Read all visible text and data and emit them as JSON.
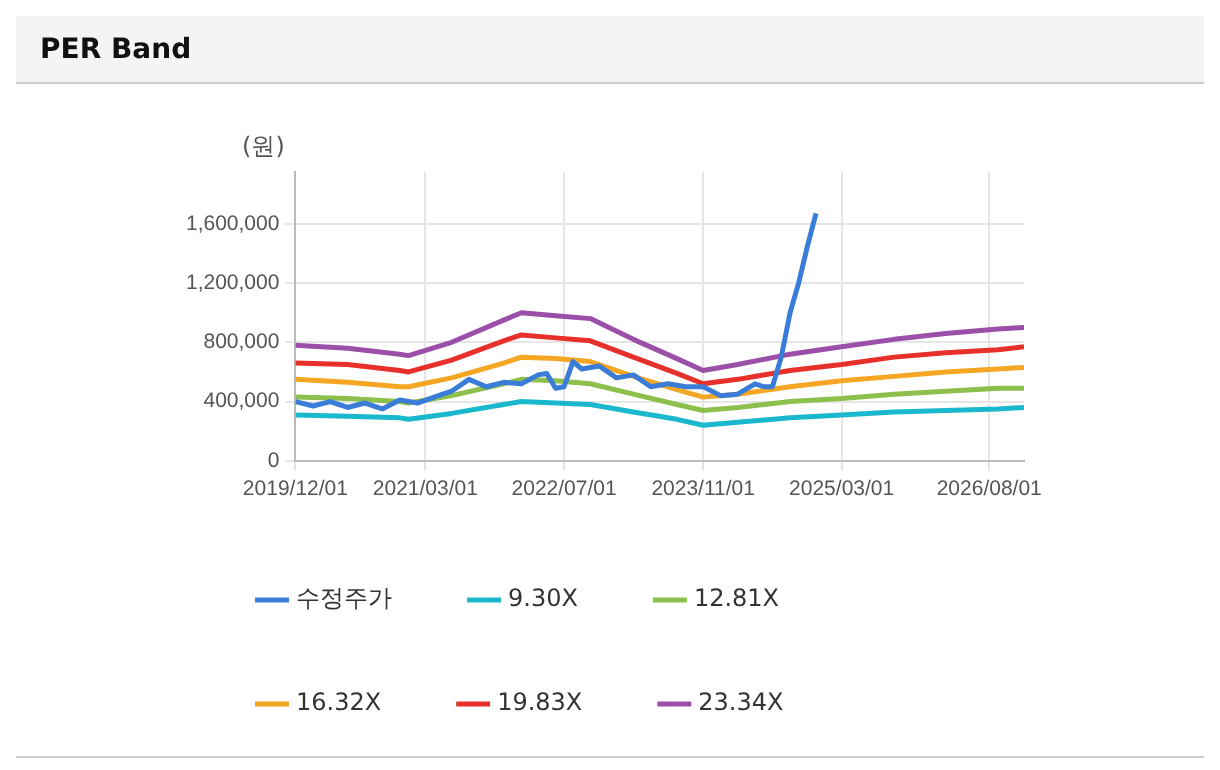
{
  "chart_data": {
    "type": "line",
    "title": "PER Band",
    "ylabel": "(원)",
    "xlim": [
      "2019-12",
      "2026-12"
    ],
    "xticks": [
      {
        "value": "2019-12",
        "label": "2019/12/01"
      },
      {
        "value": "2021-03",
        "label": "2021/03/01"
      },
      {
        "value": "2022-07",
        "label": "2022/07/01"
      },
      {
        "value": "2023-11",
        "label": "2023/11/01"
      },
      {
        "value": "2025-03",
        "label": "2025/03/01"
      },
      {
        "value": "2026-08",
        "label": "2026/08/01"
      }
    ],
    "ylim": [
      0,
      1950000
    ],
    "yticks": [
      {
        "value": 0,
        "label": "0"
      },
      {
        "value": 400000,
        "label": "400,000"
      },
      {
        "value": 800000,
        "label": "800,000"
      },
      {
        "value": 1200000,
        "label": "1,200,000"
      },
      {
        "value": 1600000,
        "label": "1,600,000"
      }
    ],
    "grid": true,
    "legend": "bottom",
    "marker": "none",
    "line_style": "solid",
    "series": [
      {
        "name": "수정주가",
        "color": "#3a7dd8",
        "x": [
          "2019-12",
          "2020-02",
          "2020-04",
          "2020-06",
          "2020-08",
          "2020-10",
          "2020-12",
          "2021-02",
          "2021-04",
          "2021-06",
          "2021-08",
          "2021-10",
          "2021-12",
          "2022-02",
          "2022-04",
          "2022-05",
          "2022-06",
          "2022-07",
          "2022-08",
          "2022-09",
          "2022-11",
          "2023-01",
          "2023-03",
          "2023-05",
          "2023-07",
          "2023-09",
          "2023-11",
          "2024-01",
          "2024-03",
          "2024-05",
          "2024-06",
          "2024-07",
          "2024-08",
          "2024-09",
          "2024-10",
          "2024-11",
          "2024-12"
        ],
        "values": [
          400000,
          370000,
          400000,
          360000,
          390000,
          350000,
          410000,
          390000,
          430000,
          470000,
          550000,
          500000,
          530000,
          520000,
          580000,
          590000,
          490000,
          500000,
          670000,
          620000,
          640000,
          560000,
          580000,
          500000,
          520000,
          500000,
          500000,
          440000,
          450000,
          520000,
          500000,
          500000,
          700000,
          1000000,
          1200000,
          1450000,
          1670000
        ]
      },
      {
        "name": "9.30X",
        "color": "#1ab8cc",
        "values": [
          310000,
          300000,
          290000,
          280000,
          320000,
          380000,
          400000,
          390000,
          380000,
          330000,
          280000,
          240000,
          260000,
          290000,
          310000,
          330000,
          340000,
          350000,
          360000
        ]
      },
      {
        "name": "12.81X",
        "color": "#8cbf4c",
        "values": [
          430000,
          420000,
          400000,
          390000,
          440000,
          520000,
          550000,
          540000,
          520000,
          450000,
          380000,
          340000,
          360000,
          400000,
          420000,
          450000,
          470000,
          490000,
          490000
        ]
      },
      {
        "name": "16.32X",
        "color": "#f5a623",
        "values": [
          550000,
          530000,
          500000,
          500000,
          560000,
          660000,
          700000,
          690000,
          670000,
          570000,
          480000,
          430000,
          450000,
          500000,
          540000,
          570000,
          600000,
          620000,
          630000
        ]
      },
      {
        "name": "19.83X",
        "color": "#e8302a",
        "values": [
          660000,
          650000,
          610000,
          600000,
          680000,
          810000,
          850000,
          830000,
          810000,
          700000,
          590000,
          520000,
          550000,
          610000,
          650000,
          700000,
          730000,
          750000,
          770000
        ]
      },
      {
        "name": "23.34X",
        "color": "#9b4fa8",
        "values": [
          780000,
          760000,
          720000,
          710000,
          800000,
          950000,
          1000000,
          980000,
          960000,
          820000,
          690000,
          610000,
          650000,
          720000,
          770000,
          820000,
          860000,
          890000,
          900000
        ]
      }
    ],
    "x": [
      "2019-12",
      "2020-06",
      "2020-12",
      "2021-01",
      "2021-06",
      "2021-12",
      "2022-02",
      "2022-06",
      "2022-10",
      "2023-03",
      "2023-08",
      "2023-11",
      "2024-03",
      "2024-09",
      "2025-03",
      "2025-09",
      "2026-03",
      "2026-09",
      "2026-12"
    ]
  }
}
